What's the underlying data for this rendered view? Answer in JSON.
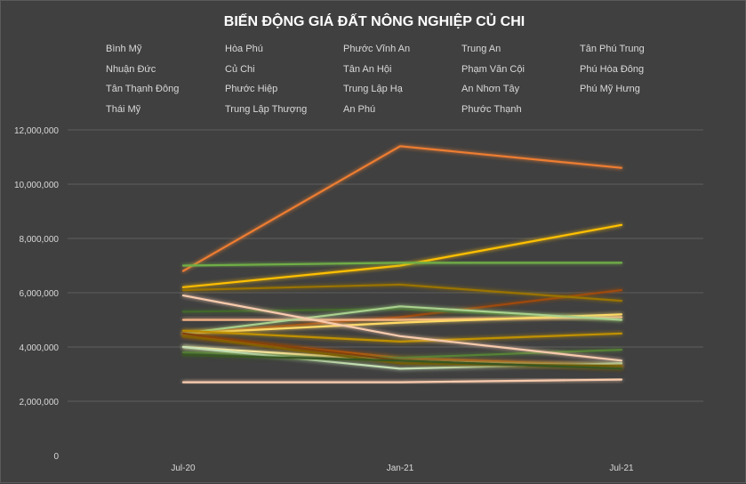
{
  "chart_data": {
    "type": "line",
    "title": "BIẾN ĐỘNG GIÁ ĐẤT NÔNG NGHIỆP CỦ CHI",
    "categories": [
      "Jul-20",
      "Jan-21",
      "Jul-21"
    ],
    "ylim": [
      0,
      12000000
    ],
    "y_ticks": [
      "0",
      "2,000,000",
      "4,000,000",
      "6,000,000",
      "8,000,000",
      "10,000,000",
      "12,000,000"
    ],
    "y_tick_values": [
      0,
      2000000,
      4000000,
      6000000,
      8000000,
      10000000,
      12000000
    ],
    "grid": true,
    "legend_position": "top",
    "series": [
      {
        "name": "Bình Mỹ",
        "color": "#ED7D31",
        "values": [
          6800000,
          11400000,
          10600000
        ]
      },
      {
        "name": "Hòa Phú",
        "color": "#FFC000",
        "values": [
          6200000,
          7000000,
          8500000
        ]
      },
      {
        "name": "Phước Vĩnh An",
        "color": "#70AD47",
        "values": [
          7000000,
          7100000,
          7100000
        ]
      },
      {
        "name": "Trung An",
        "color": "#9E480E",
        "values": [
          4500000,
          5100000,
          6100000
        ]
      },
      {
        "name": "Tân Phú Trung",
        "color": "#997300",
        "values": [
          6100000,
          6300000,
          5700000
        ]
      },
      {
        "name": "Nhuận Đức",
        "color": "#43682B",
        "values": [
          5300000,
          5400000,
          5000000
        ]
      },
      {
        "name": "Củ Chi",
        "color": "#F4B183",
        "values": [
          5000000,
          5000000,
          5100000
        ]
      },
      {
        "name": "Tân An Hội",
        "color": "#FFD966",
        "values": [
          4500000,
          4900000,
          5200000
        ]
      },
      {
        "name": "Phạm Văn Cội",
        "color": "#A9D18E",
        "values": [
          4500000,
          5500000,
          5000000
        ]
      },
      {
        "name": "Phú Hòa Đông",
        "color": "#C55A11",
        "values": [
          4400000,
          3600000,
          3300000
        ]
      },
      {
        "name": "Tân Thạnh Đông",
        "color": "#BF9000",
        "values": [
          4600000,
          4200000,
          4500000
        ]
      },
      {
        "name": "Phước Hiệp",
        "color": "#548235",
        "values": [
          3800000,
          3600000,
          3900000
        ]
      },
      {
        "name": "Trung Lập Hạ",
        "color": "#F8CBAD",
        "values": [
          5900000,
          4400000,
          3500000
        ]
      },
      {
        "name": "An Nhơn Tây",
        "color": "#FFE699",
        "values": [
          4000000,
          3500000,
          3300000
        ]
      },
      {
        "name": "Phú Mỹ Hưng",
        "color": "#C5E0B4",
        "values": [
          4000000,
          3200000,
          3400000
        ]
      },
      {
        "name": "Thái Mỹ",
        "color": "#843C0C",
        "values": [
          4500000,
          3500000,
          3200000
        ]
      },
      {
        "name": "Trung Lập Thượng",
        "color": "#806000",
        "values": [
          4400000,
          3400000,
          3300000
        ]
      },
      {
        "name": "An Phú",
        "color": "#375623",
        "values": [
          3700000,
          3500000,
          3200000
        ]
      },
      {
        "name": "Phước Thạnh",
        "color": "#F8CBAD",
        "values": [
          2700000,
          2700000,
          2800000
        ]
      }
    ]
  }
}
